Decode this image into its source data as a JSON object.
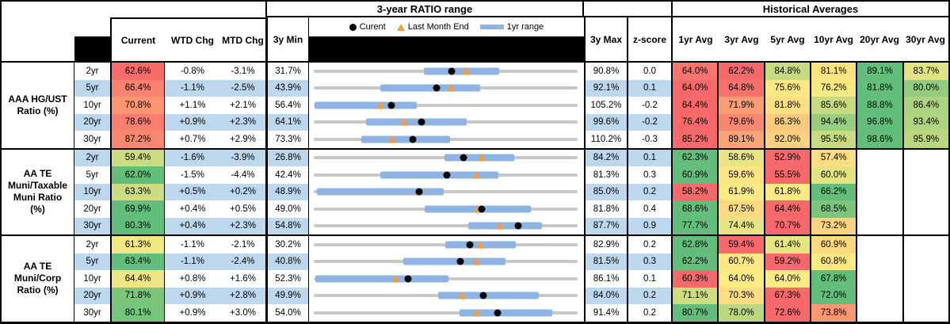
{
  "header": {
    "range_title": "3-year RATIO range",
    "hist_title": "Historical Averages",
    "columns": {
      "current": "Current",
      "wtd": "WTD Chg",
      "mtd": "MTD Chg",
      "min": "3y Min",
      "max": "3y Max",
      "z": "z-score"
    },
    "avg_columns": [
      "1yr Avg",
      "3yr Avg",
      "5yr Avg",
      "10yr Avg",
      "20yr Avg",
      "30yr Avg"
    ],
    "legend": {
      "current": "Curent",
      "last_month": "Last Month End",
      "range": "1yr range"
    }
  },
  "colors": {
    "band_blue": "#BDD7EE",
    "bar_blue": "#8DB4E2",
    "track_gray": "#C7C7C7",
    "marker_orange": "#EF9C4D",
    "heat_red": "#F8696B",
    "heat_yellow": "#FFEB84",
    "heat_green": "#63BE7B"
  },
  "chart_data": {
    "type": "table",
    "title": "3-year RATIO range",
    "groups": [
      {
        "label": "AAA HG/UST\nRatio (%)",
        "rows": [
          {
            "tenor": "2yr",
            "current": 62.6,
            "wtd": "-0.8%",
            "mtd": "-3.1%",
            "min3y": 31.7,
            "max3y": 90.8,
            "z": "0.0",
            "last_month_end": 65.7,
            "range_1yr": [
              56.3,
              73.2
            ],
            "avgs": [
              64.0,
              62.2,
              84.8,
              81.1,
              89.1,
              83.7
            ]
          },
          {
            "tenor": "5yr",
            "current": 66.4,
            "wtd": "-1.1%",
            "mtd": "-2.5%",
            "min3y": 43.9,
            "max3y": 92.1,
            "z": "0.1",
            "last_month_end": 68.9,
            "range_1yr": [
              56.0,
              74.3
            ],
            "avgs": [
              64.0,
              64.8,
              75.6,
              76.2,
              81.8,
              80.0
            ]
          },
          {
            "tenor": "10yr",
            "current": 70.8,
            "wtd": "+1.1%",
            "mtd": "+2.1%",
            "min3y": 56.4,
            "max3y": 105.2,
            "z": "-0.2",
            "last_month_end": 68.7,
            "range_1yr": [
              56.6,
              75.5
            ],
            "avgs": [
              64.4,
              71.9,
              81.8,
              85.6,
              88.8,
              86.4
            ]
          },
          {
            "tenor": "20yr",
            "current": 78.6,
            "wtd": "+0.9%",
            "mtd": "+2.3%",
            "min3y": 64.1,
            "max3y": 99.6,
            "z": "-0.2",
            "last_month_end": 76.3,
            "range_1yr": [
              71.1,
              84.7
            ],
            "avgs": [
              76.4,
              79.6,
              86.3,
              94.4,
              96.8,
              93.4
            ]
          },
          {
            "tenor": "30yr",
            "current": 87.2,
            "wtd": "+0.7%",
            "mtd": "+2.9%",
            "min3y": 73.3,
            "max3y": 110.2,
            "z": "-0.3",
            "last_month_end": 84.3,
            "range_1yr": [
              80.0,
              92.4
            ],
            "avgs": [
              85.2,
              89.1,
              92.0,
              95.5,
              98.6,
              95.9
            ]
          }
        ]
      },
      {
        "label": "AA TE\nMuni/Taxable\nMuni Ratio\n(%)",
        "rows": [
          {
            "tenor": "2yr",
            "current": 59.4,
            "wtd": "-1.6%",
            "mtd": "-3.9%",
            "min3y": 26.8,
            "max3y": 84.2,
            "z": "0.1",
            "last_month_end": 63.3,
            "range_1yr": [
              55.3,
              70.4
            ],
            "avgs": [
              62.3,
              58.6,
              52.9,
              57.4,
              null,
              null
            ]
          },
          {
            "tenor": "5yr",
            "current": 62.0,
            "wtd": "-1.5%",
            "mtd": "-4.4%",
            "min3y": 42.4,
            "max3y": 81.3,
            "z": "0.3",
            "last_month_end": 66.4,
            "range_1yr": [
              52.2,
              69.6
            ],
            "avgs": [
              60.9,
              59.6,
              55.5,
              60.0,
              null,
              null
            ]
          },
          {
            "tenor": "10yr",
            "current": 63.3,
            "wtd": "+0.5%",
            "mtd": "+0.2%",
            "min3y": 48.9,
            "max3y": 85.0,
            "z": "0.2",
            "last_month_end": 63.1,
            "range_1yr": [
              49.3,
              66.7
            ],
            "avgs": [
              58.2,
              61.9,
              61.8,
              66.2,
              null,
              null
            ]
          },
          {
            "tenor": "20yr",
            "current": 69.9,
            "wtd": "+0.4%",
            "mtd": "+0.5%",
            "min3y": 49.0,
            "max3y": 81.8,
            "z": "0.4",
            "last_month_end": 69.4,
            "range_1yr": [
              62.8,
              76.0
            ],
            "avgs": [
              68.6,
              67.5,
              64.4,
              68.5,
              null,
              null
            ]
          },
          {
            "tenor": "30yr",
            "current": 80.3,
            "wtd": "+0.4%",
            "mtd": "+2.3%",
            "min3y": 54.8,
            "max3y": 87.7,
            "z": "0.9",
            "last_month_end": 78.0,
            "range_1yr": [
              74.1,
              83.3
            ],
            "avgs": [
              77.7,
              74.4,
              70.7,
              73.2,
              null,
              null
            ]
          }
        ]
      },
      {
        "label": "AA TE\nMuni/Corp\nRatio (%)",
        "rows": [
          {
            "tenor": "2yr",
            "current": 61.3,
            "wtd": "-1.1%",
            "mtd": "-2.1%",
            "min3y": 30.2,
            "max3y": 82.9,
            "z": "0.2",
            "last_month_end": 63.4,
            "range_1yr": [
              56.4,
              70.5
            ],
            "avgs": [
              62.8,
              59.4,
              61.4,
              60.9,
              null,
              null
            ]
          },
          {
            "tenor": "5yr",
            "current": 63.4,
            "wtd": "-1.1%",
            "mtd": "-2.4%",
            "min3y": 40.8,
            "max3y": 81.5,
            "z": "0.3",
            "last_month_end": 65.8,
            "range_1yr": [
              54.6,
              70.4
            ],
            "avgs": [
              62.2,
              60.7,
              59.2,
              60.8,
              null,
              null
            ]
          },
          {
            "tenor": "10yr",
            "current": 64.4,
            "wtd": "+0.8%",
            "mtd": "+1.6%",
            "min3y": 52.3,
            "max3y": 86.1,
            "z": "0.1",
            "last_month_end": 62.8,
            "range_1yr": [
              52.5,
              69.6
            ],
            "avgs": [
              60.3,
              64.0,
              64.0,
              67.8,
              null,
              null
            ]
          },
          {
            "tenor": "20yr",
            "current": 71.8,
            "wtd": "+0.9%",
            "mtd": "+2.8%",
            "min3y": 49.9,
            "max3y": 84.0,
            "z": "0.2",
            "last_month_end": 69.0,
            "range_1yr": [
              66.0,
              79.0
            ],
            "avgs": [
              71.1,
              70.3,
              67.3,
              72.0,
              null,
              null
            ]
          },
          {
            "tenor": "30yr",
            "current": 80.1,
            "wtd": "+0.9%",
            "mtd": "+3.0%",
            "min3y": 54.0,
            "max3y": 91.4,
            "z": "0.2",
            "last_month_end": 77.1,
            "range_1yr": [
              74.7,
              87.8
            ],
            "avgs": [
              80.7,
              78.0,
              72.6,
              73.8,
              null,
              null
            ]
          }
        ]
      }
    ]
  }
}
